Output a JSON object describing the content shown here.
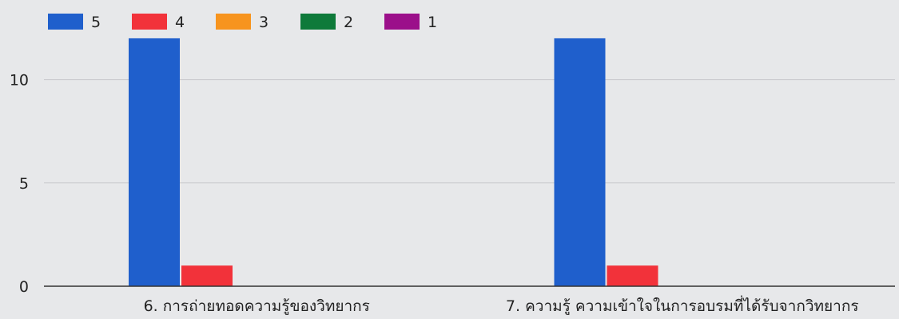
{
  "chart_data": {
    "type": "bar",
    "categories": [
      "6. การถ่ายทอดความรู้ของวิทยากร",
      "7. ความรู้ ความเข้าใจในการอบรมที่ได้รับจากวิทยากร"
    ],
    "series": [
      {
        "name": "5",
        "color": "#1f5fcc",
        "values": [
          12,
          12
        ]
      },
      {
        "name": "4",
        "color": "#f2323a",
        "values": [
          1,
          1
        ]
      },
      {
        "name": "3",
        "color": "#f7941e",
        "values": [
          0,
          0
        ]
      },
      {
        "name": "2",
        "color": "#0e7a3a",
        "values": [
          0,
          0
        ]
      },
      {
        "name": "1",
        "color": "#9b0f8a",
        "values": [
          0,
          0
        ]
      }
    ],
    "yticks": [
      0,
      5,
      10
    ],
    "ylim": [
      0,
      12.5
    ],
    "grid": true,
    "legend_position": "top-left"
  }
}
